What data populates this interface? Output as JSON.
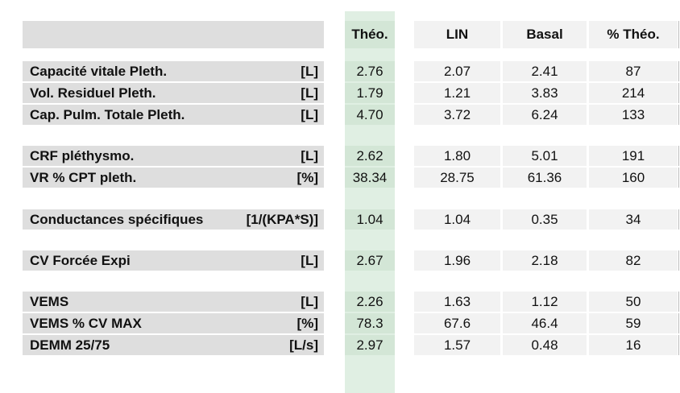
{
  "headers": [
    "Théo.",
    "LIN",
    "Basal",
    "% Théo."
  ],
  "rows": [
    {
      "label": "Capacité vitale Pleth.",
      "unit": "[L]",
      "theo": "2.76",
      "lin": "2.07",
      "basal": "2.41",
      "pct": "87"
    },
    {
      "label": "Vol. Residuel Pleth.",
      "unit": "[L]",
      "theo": "1.79",
      "lin": "1.21",
      "basal": "3.83",
      "pct": "214"
    },
    {
      "label": "Cap. Pulm. Totale Pleth.",
      "unit": "[L]",
      "theo": "4.70",
      "lin": "3.72",
      "basal": "6.24",
      "pct": "133"
    },
    {
      "label": "CRF pléthysmo.",
      "unit": "[L]",
      "theo": "2.62",
      "lin": "1.80",
      "basal": "5.01",
      "pct": "191"
    },
    {
      "label": "VR % CPT pleth.",
      "unit": "[%]",
      "theo": "38.34",
      "lin": "28.75",
      "basal": "61.36",
      "pct": "160"
    },
    {
      "label": "Conductances spécifiques",
      "unit": "[1/(KPA*S)]",
      "theo": "1.04",
      "lin": "1.04",
      "basal": "0.35",
      "pct": "34"
    },
    {
      "label": "CV Forcée Expi",
      "unit": "[L]",
      "theo": "2.67",
      "lin": "1.96",
      "basal": "2.18",
      "pct": "82"
    },
    {
      "label": "VEMS",
      "unit": "[L]",
      "theo": "2.26",
      "lin": "1.63",
      "basal": "1.12",
      "pct": "50"
    },
    {
      "label": "VEMS % CV MAX",
      "unit": "[%]",
      "theo": "78.3",
      "lin": "67.6",
      "basal": "46.4",
      "pct": "59"
    },
    {
      "label": "DEMM 25/75",
      "unit": "[L/s]",
      "theo": "2.97",
      "lin": "1.57",
      "basal": "0.48",
      "pct": "16"
    }
  ]
}
